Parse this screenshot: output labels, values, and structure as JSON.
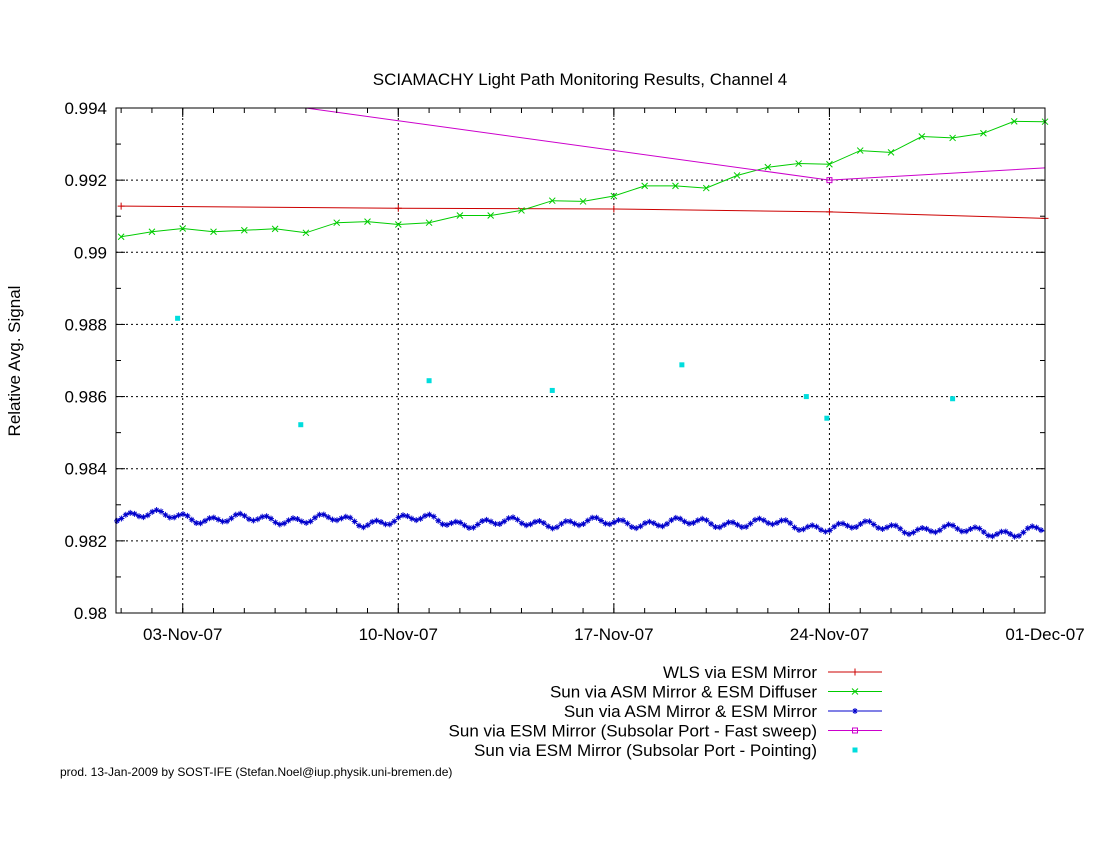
{
  "footer": "prod. 13-Jan-2009 by SOST-IFE (Stefan.Noel@iup.physik.uni-bremen.de)",
  "chart_data": {
    "type": "line",
    "title": "SCIAMACHY Light Path Monitoring Results, Channel 4",
    "xlabel": "",
    "ylabel": "Relative Avg. Signal",
    "xlim": [
      "2007-10-31T20:00",
      "2007-12-01T00:00"
    ],
    "ylim": [
      0.98,
      0.994
    ],
    "x_ticks": [
      {
        "date": "2007-11-03",
        "label": "03-Nov-07"
      },
      {
        "date": "2007-11-10",
        "label": "10-Nov-07"
      },
      {
        "date": "2007-11-17",
        "label": "17-Nov-07"
      },
      {
        "date": "2007-11-24",
        "label": "24-Nov-07"
      },
      {
        "date": "2007-12-01",
        "label": "01-Dec-07"
      }
    ],
    "y_ticks": [
      0.98,
      0.982,
      0.984,
      0.986,
      0.988,
      0.99,
      0.992,
      0.994
    ],
    "y_tick_labels": [
      "0.98",
      "0.982",
      "0.984",
      "0.986",
      "0.988",
      "0.99",
      "0.992",
      "0.994"
    ],
    "grid": true,
    "legend_position": "bottom-right",
    "series": [
      {
        "name": "WLS via ESM Mirror",
        "color": "#cc0000",
        "marker": "plus",
        "x": [
          "2007-11-01",
          "2007-11-10",
          "2007-11-17",
          "2007-11-24",
          "2007-12-01"
        ],
        "y": [
          0.99128,
          0.99122,
          0.9912,
          0.99112,
          0.99094
        ]
      },
      {
        "name": "Sun via ASM Mirror & ESM Diffuser",
        "color": "#00cc00",
        "marker": "cross",
        "x": [
          "2007-11-01",
          "2007-11-02",
          "2007-11-03",
          "2007-11-04",
          "2007-11-05",
          "2007-11-06",
          "2007-11-07",
          "2007-11-08",
          "2007-11-09",
          "2007-11-10",
          "2007-11-11",
          "2007-11-12",
          "2007-11-13",
          "2007-11-14",
          "2007-11-15",
          "2007-11-16",
          "2007-11-17",
          "2007-11-18",
          "2007-11-19",
          "2007-11-20",
          "2007-11-21",
          "2007-11-22",
          "2007-11-23",
          "2007-11-24",
          "2007-11-25",
          "2007-11-26",
          "2007-11-27",
          "2007-11-28",
          "2007-11-29",
          "2007-11-30",
          "2007-12-01"
        ],
        "y": [
          0.99043,
          0.99057,
          0.99066,
          0.99057,
          0.99061,
          0.99065,
          0.99054,
          0.99082,
          0.99085,
          0.99077,
          0.99082,
          0.99102,
          0.99102,
          0.99116,
          0.99143,
          0.99141,
          0.99156,
          0.99184,
          0.99184,
          0.99178,
          0.99213,
          0.99236,
          0.99246,
          0.99244,
          0.99282,
          0.99277,
          0.99321,
          0.99317,
          0.9933,
          0.99363,
          0.99362
        ]
      },
      {
        "name": "Sun via ASM Mirror & ESM Mirror",
        "color": "#0000cc",
        "marker": "star",
        "x": [
          "2007-11-01",
          "2007-11-02",
          "2007-11-03",
          "2007-11-04",
          "2007-11-05",
          "2007-11-06",
          "2007-11-07",
          "2007-11-08",
          "2007-11-09",
          "2007-11-10",
          "2007-11-11",
          "2007-11-12",
          "2007-11-13",
          "2007-11-14",
          "2007-11-15",
          "2007-11-16",
          "2007-11-17",
          "2007-11-18",
          "2007-11-19",
          "2007-11-20",
          "2007-11-21",
          "2007-11-22",
          "2007-11-23",
          "2007-11-24",
          "2007-11-25",
          "2007-11-26",
          "2007-11-27",
          "2007-11-28",
          "2007-11-29",
          "2007-11-30",
          "2007-12-01"
        ],
        "y": [
          0.9827,
          0.9827,
          0.9827,
          0.9826,
          0.9826,
          0.9826,
          0.9826,
          0.9826,
          0.9825,
          0.9826,
          0.9826,
          0.9825,
          0.9825,
          0.9825,
          0.9825,
          0.9825,
          0.9825,
          0.9825,
          0.9825,
          0.9825,
          0.9825,
          0.9825,
          0.9824,
          0.9824,
          0.9824,
          0.9824,
          0.9823,
          0.9823,
          0.9823,
          0.9822,
          0.9823
        ]
      },
      {
        "name": "Sun via ESM Mirror (Subsolar Port - Fast sweep)",
        "color": "#cc00cc",
        "marker": "square",
        "x": [
          "2007-11-07",
          "2007-11-24",
          "2007-12-01"
        ],
        "y": [
          0.994,
          0.992,
          0.99234
        ]
      },
      {
        "name": "Sun via ESM Mirror (Subsolar Port - Pointing)",
        "color": "#00dddd",
        "marker": "dot",
        "x": [
          "2007-11-02T20:00",
          "2007-11-06T20:00",
          "2007-11-11T00:00",
          "2007-11-15T00:00",
          "2007-11-19T05:00",
          "2007-11-23T06:00",
          "2007-11-23T22:00",
          "2007-11-28T00:00"
        ],
        "y": [
          0.98817,
          0.98522,
          0.98644,
          0.98617,
          0.98688,
          0.986,
          0.9854,
          0.98594
        ]
      }
    ]
  }
}
